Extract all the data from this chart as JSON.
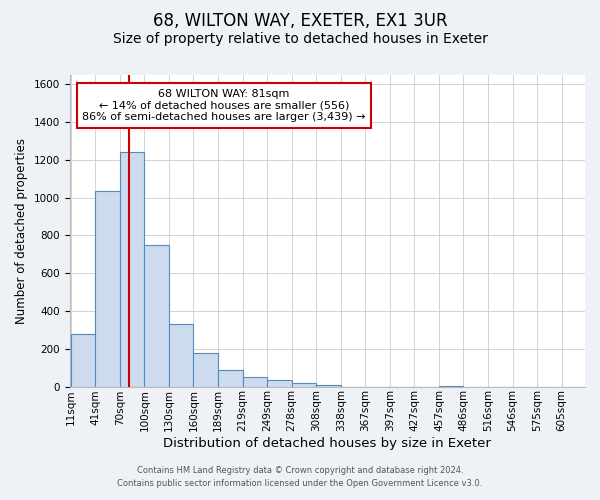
{
  "title": "68, WILTON WAY, EXETER, EX1 3UR",
  "subtitle": "Size of property relative to detached houses in Exeter",
  "xlabel": "Distribution of detached houses by size in Exeter",
  "ylabel": "Number of detached properties",
  "bar_labels": [
    "11sqm",
    "41sqm",
    "70sqm",
    "100sqm",
    "130sqm",
    "160sqm",
    "189sqm",
    "219sqm",
    "249sqm",
    "278sqm",
    "308sqm",
    "338sqm",
    "367sqm",
    "397sqm",
    "427sqm",
    "457sqm",
    "486sqm",
    "516sqm",
    "546sqm",
    "575sqm",
    "605sqm"
  ],
  "bar_values": [
    280,
    1035,
    1240,
    750,
    330,
    175,
    85,
    50,
    35,
    20,
    10,
    0,
    0,
    0,
    0,
    5,
    0,
    0,
    0,
    0,
    0
  ],
  "bar_color": "#ccdcee",
  "bar_edge_color": "#5588bb",
  "ylim": [
    0,
    1650
  ],
  "yticks": [
    0,
    200,
    400,
    600,
    800,
    1000,
    1200,
    1400,
    1600
  ],
  "property_line_label": "68 WILTON WAY: 81sqm",
  "annotation_line1": "← 14% of detached houses are smaller (556)",
  "annotation_line2": "86% of semi-detached houses are larger (3,439) →",
  "annotation_box_color": "#ffffff",
  "annotation_box_edge": "#cc0000",
  "property_line_color": "#cc0000",
  "footer_line1": "Contains HM Land Registry data © Crown copyright and database right 2024.",
  "footer_line2": "Contains public sector information licensed under the Open Government Licence v3.0.",
  "background_color": "#eef2f7",
  "plot_background_color": "#ffffff",
  "grid_color": "#cccccc",
  "title_fontsize": 12,
  "subtitle_fontsize": 10,
  "xlabel_fontsize": 9.5,
  "ylabel_fontsize": 8.5,
  "tick_fontsize": 7.5,
  "annot_fontsize": 8,
  "footer_fontsize": 6
}
